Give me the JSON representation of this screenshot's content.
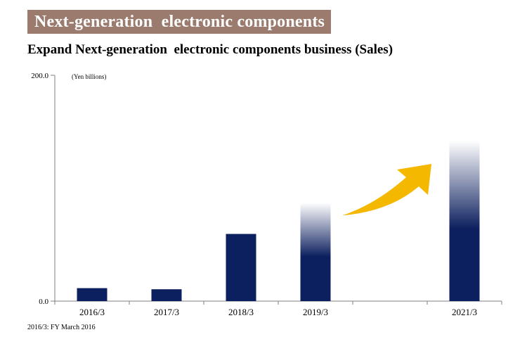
{
  "banner": {
    "text": "Next-generation  electronic components",
    "background_color": "#9b7b6e",
    "text_color": "#ffffff"
  },
  "subtitle": "Expand Next-generation  electronic components business (Sales)",
  "footnote": "2016/3: FY March 2016",
  "colors": {
    "bar": "#0c1f5e",
    "arrow": "#f5b800"
  },
  "chart_data": {
    "type": "bar",
    "title": "",
    "xlabel": "",
    "ylabel": "(Yen billions)",
    "ylim": [
      0,
      200
    ],
    "y_tick_labels": [
      "0.0",
      "200.0"
    ],
    "categories": [
      "2016/3",
      "2017/3",
      "2018/3",
      "2019/3",
      "",
      "2021/3"
    ],
    "values": [
      11.5,
      10.5,
      59.5,
      87,
      null,
      142
    ],
    "projected": [
      false,
      false,
      false,
      true,
      false,
      true
    ],
    "annotation": "upward-growth-arrow"
  }
}
